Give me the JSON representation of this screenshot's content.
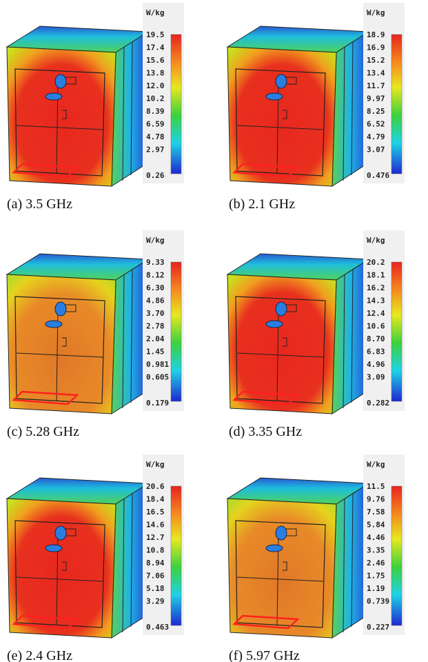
{
  "panels": [
    {
      "unit": "W/kg",
      "scale": [
        "19.5",
        "17.4",
        "15.6",
        "13.8",
        "12.0",
        "10.2",
        "8.39",
        "6.59",
        "4.78",
        "2.97",
        "0.26"
      ],
      "caption": "(a) 3.5 GHz"
    },
    {
      "unit": "W/kg",
      "scale": [
        "18.9",
        "16.9",
        "15.2",
        "13.4",
        "11.7",
        "9.97",
        "8.25",
        "6.52",
        "4.79",
        "3.07",
        "0.476"
      ],
      "caption": "(b) 2.1 GHz"
    },
    {
      "unit": "W/kg",
      "scale": [
        "9.33",
        "8.12",
        "6.30",
        "4.86",
        "3.70",
        "2.78",
        "2.04",
        "1.45",
        "0.981",
        "0.605",
        "0.179"
      ],
      "caption": "(c) 5.28 GHz"
    },
    {
      "unit": "W/kg",
      "scale": [
        "20.2",
        "18.1",
        "16.2",
        "14.3",
        "12.4",
        "10.6",
        "8.70",
        "6.83",
        "4.96",
        "3.09",
        "0.282"
      ],
      "caption": "(d) 3.35 GHz"
    },
    {
      "unit": "W/kg",
      "scale": [
        "20.6",
        "18.4",
        "16.5",
        "14.6",
        "12.7",
        "10.8",
        "8.94",
        "7.06",
        "5.18",
        "3.29",
        "0.463"
      ],
      "caption": "(e) 2.4 GHz"
    },
    {
      "unit": "W/kg",
      "scale": [
        "11.5",
        "9.76",
        "7.58",
        "5.84",
        "4.46",
        "3.35",
        "2.46",
        "1.75",
        "1.19",
        "0.739",
        "0.227"
      ],
      "caption": "(f) 5.97 GHz"
    }
  ]
}
